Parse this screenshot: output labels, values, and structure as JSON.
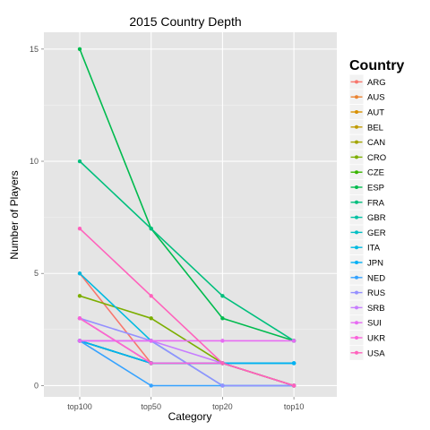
{
  "chart_data": {
    "type": "line",
    "title": "2015 Country Depth",
    "xlabel": "Category",
    "ylabel": "Number of Players",
    "categories": [
      "top100",
      "top50",
      "top20",
      "top10"
    ],
    "y_ticks": [
      0,
      5,
      10,
      15
    ],
    "ylim": [
      -0.5,
      15.75
    ],
    "grid": true,
    "legend": {
      "title": "Country",
      "position": "right"
    },
    "series": [
      {
        "name": "ARG",
        "color": "#F8766D",
        "values": [
          5,
          1,
          1,
          0
        ]
      },
      {
        "name": "AUS",
        "color": "#EA8331",
        "values": [
          3,
          1,
          1,
          0
        ]
      },
      {
        "name": "AUT",
        "color": "#D89000",
        "values": [
          2,
          1,
          1,
          0
        ]
      },
      {
        "name": "BEL",
        "color": "#C09B00",
        "values": [
          2,
          1,
          1,
          0
        ]
      },
      {
        "name": "CAN",
        "color": "#A3A500",
        "values": [
          2,
          1,
          1,
          0
        ]
      },
      {
        "name": "CRO",
        "color": "#7CAE00",
        "values": [
          4,
          3,
          1,
          0
        ]
      },
      {
        "name": "CZE",
        "color": "#39B600",
        "values": [
          2,
          1,
          1,
          0
        ]
      },
      {
        "name": "ESP",
        "color": "#00BB4E",
        "values": [
          15,
          7,
          3,
          2
        ]
      },
      {
        "name": "FRA",
        "color": "#00BF7D",
        "values": [
          10,
          7,
          4,
          2
        ]
      },
      {
        "name": "GBR",
        "color": "#00C1A3",
        "values": [
          2,
          1,
          1,
          1
        ]
      },
      {
        "name": "GER",
        "color": "#00BFC4",
        "values": [
          2,
          1,
          1,
          1
        ]
      },
      {
        "name": "ITA",
        "color": "#00BAE0",
        "values": [
          5,
          2,
          0,
          0
        ]
      },
      {
        "name": "JPN",
        "color": "#00B0F6",
        "values": [
          2,
          1,
          1,
          1
        ]
      },
      {
        "name": "NED",
        "color": "#35A2FF",
        "values": [
          2,
          0,
          0,
          0
        ]
      },
      {
        "name": "RUS",
        "color": "#9590FF",
        "values": [
          3,
          2,
          0,
          0
        ]
      },
      {
        "name": "SRB",
        "color": "#C77CFF",
        "values": [
          2,
          2,
          1,
          0
        ]
      },
      {
        "name": "SUI",
        "color": "#E76BF3",
        "values": [
          2,
          2,
          2,
          2
        ]
      },
      {
        "name": "UKR",
        "color": "#FA62DB",
        "values": [
          3,
          1,
          1,
          0
        ]
      },
      {
        "name": "USA",
        "color": "#FF62BC",
        "values": [
          7,
          4,
          1,
          0
        ]
      }
    ]
  }
}
